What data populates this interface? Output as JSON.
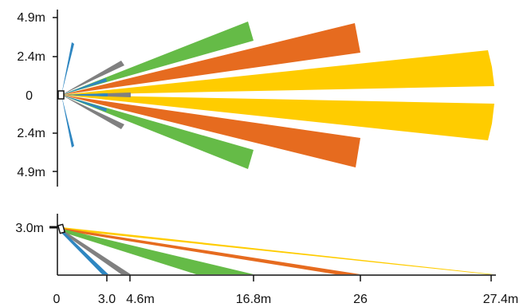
{
  "diagram": {
    "top_view": {
      "y_labels": [
        "4.9m",
        "2.4m",
        "0",
        "2.4m",
        "4.9m"
      ]
    },
    "side_view": {
      "height_label": "3.0m"
    },
    "x_labels": [
      "0",
      "3.0",
      "4.6m",
      "16.8m",
      "26",
      "27.4m"
    ],
    "colors": {
      "blue": "#2e86c1",
      "gray": "#808080",
      "green": "#65bb47",
      "orange": "#e66b1f",
      "yellow": "#ffcc00",
      "axis": "#111111"
    }
  }
}
